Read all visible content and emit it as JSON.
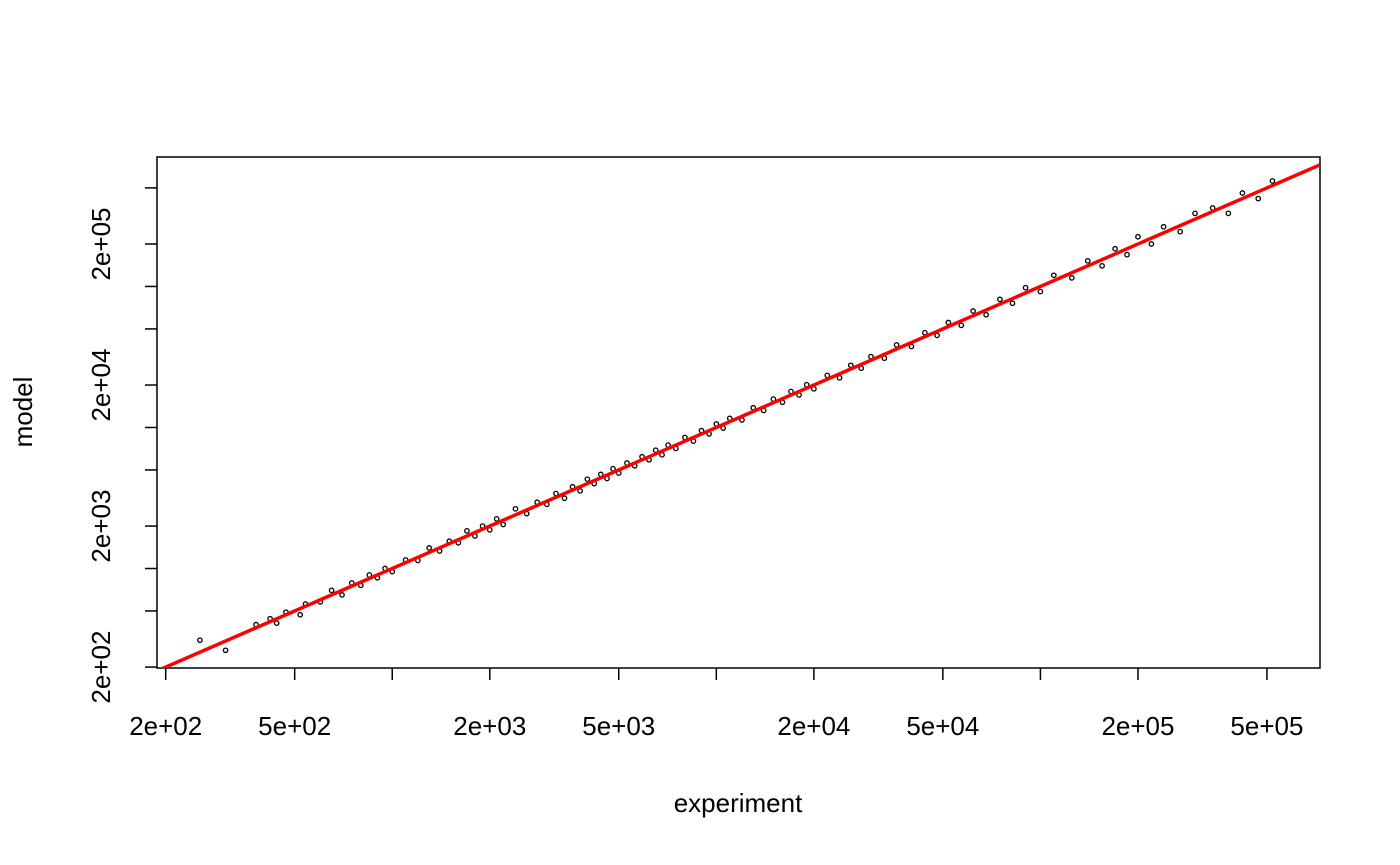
{
  "chart_data": {
    "type": "scatter",
    "x_label": "experiment",
    "y_label": "model",
    "log_x": true,
    "log_y": true,
    "xlim": [
      188,
      729000
    ],
    "ylim": [
      197,
      828000
    ],
    "xticks": [
      {
        "value": 200,
        "label": "2e+02"
      },
      {
        "value": 500,
        "label": "5e+02"
      },
      {
        "value": 2000,
        "label": "2e+03"
      },
      {
        "value": 5000,
        "label": "5e+03"
      },
      {
        "value": 20000,
        "label": "2e+04"
      },
      {
        "value": 50000,
        "label": "5e+04"
      },
      {
        "value": 200000,
        "label": "2e+05"
      },
      {
        "value": 500000,
        "label": "5e+05"
      }
    ],
    "xticks_unlabeled": [
      1000,
      10000,
      100000
    ],
    "yticks": [
      {
        "value": 200,
        "label": "2e+02"
      },
      {
        "value": 2000,
        "label": "2e+03"
      },
      {
        "value": 20000,
        "label": "2e+04"
      },
      {
        "value": 200000,
        "label": "2e+05"
      }
    ],
    "yticks_unlabeled": [
      500,
      1000,
      5000,
      10000,
      50000,
      100000,
      500000
    ],
    "point_color": "#000000",
    "reference_line": {
      "slope": 1,
      "intercept": 0,
      "color": "#ff0000"
    },
    "x": [
      255,
      306,
      380,
      420,
      440,
      470,
      520,
      540,
      600,
      650,
      700,
      750,
      800,
      850,
      900,
      950,
      1000,
      1100,
      1200,
      1300,
      1400,
      1500,
      1600,
      1700,
      1800,
      1900,
      2000,
      2100,
      2200,
      2400,
      2600,
      2800,
      3000,
      3200,
      3400,
      3600,
      3800,
      4000,
      4200,
      4400,
      4600,
      4800,
      5000,
      5300,
      5600,
      5900,
      6200,
      6500,
      6800,
      7100,
      7500,
      8000,
      8500,
      9000,
      9500,
      10000,
      10500,
      11000,
      12000,
      13000,
      14000,
      15000,
      16000,
      17000,
      18000,
      19000,
      20000,
      22000,
      24000,
      26000,
      28000,
      30000,
      33000,
      36000,
      40000,
      44000,
      48000,
      52000,
      57000,
      62000,
      68000,
      75000,
      82000,
      90000,
      100000,
      110000,
      125000,
      140000,
      155000,
      170000,
      185000,
      200000,
      220000,
      240000,
      270000,
      300000,
      340000,
      380000,
      420000,
      470000,
      520000
    ],
    "y": [
      310,
      263,
      400,
      440,
      410,
      490,
      470,
      560,
      580,
      700,
      650,
      790,
      760,
      900,
      860,
      1000,
      950,
      1150,
      1140,
      1400,
      1330,
      1560,
      1520,
      1850,
      1700,
      2000,
      1880,
      2250,
      2050,
      2650,
      2450,
      2950,
      2850,
      3400,
      3150,
      3800,
      3550,
      4300,
      4000,
      4650,
      4350,
      5100,
      4750,
      5600,
      5350,
      6200,
      5900,
      6900,
      6400,
      7500,
      7100,
      8500,
      8000,
      9500,
      9000,
      10600,
      9900,
      11600,
      11300,
      13800,
      13200,
      15900,
      15100,
      18000,
      17000,
      20100,
      18800,
      23400,
      22500,
      27600,
      26300,
      31800,
      31000,
      38500,
      37500,
      47000,
      45000,
      55500,
      53000,
      67000,
      63000,
      81000,
      76000,
      98000,
      92000,
      120000,
      115000,
      152000,
      140000,
      185000,
      168000,
      225000,
      200000,
      265000,
      245000,
      330000,
      360000,
      330000,
      460000,
      420000,
      560000
    ]
  }
}
